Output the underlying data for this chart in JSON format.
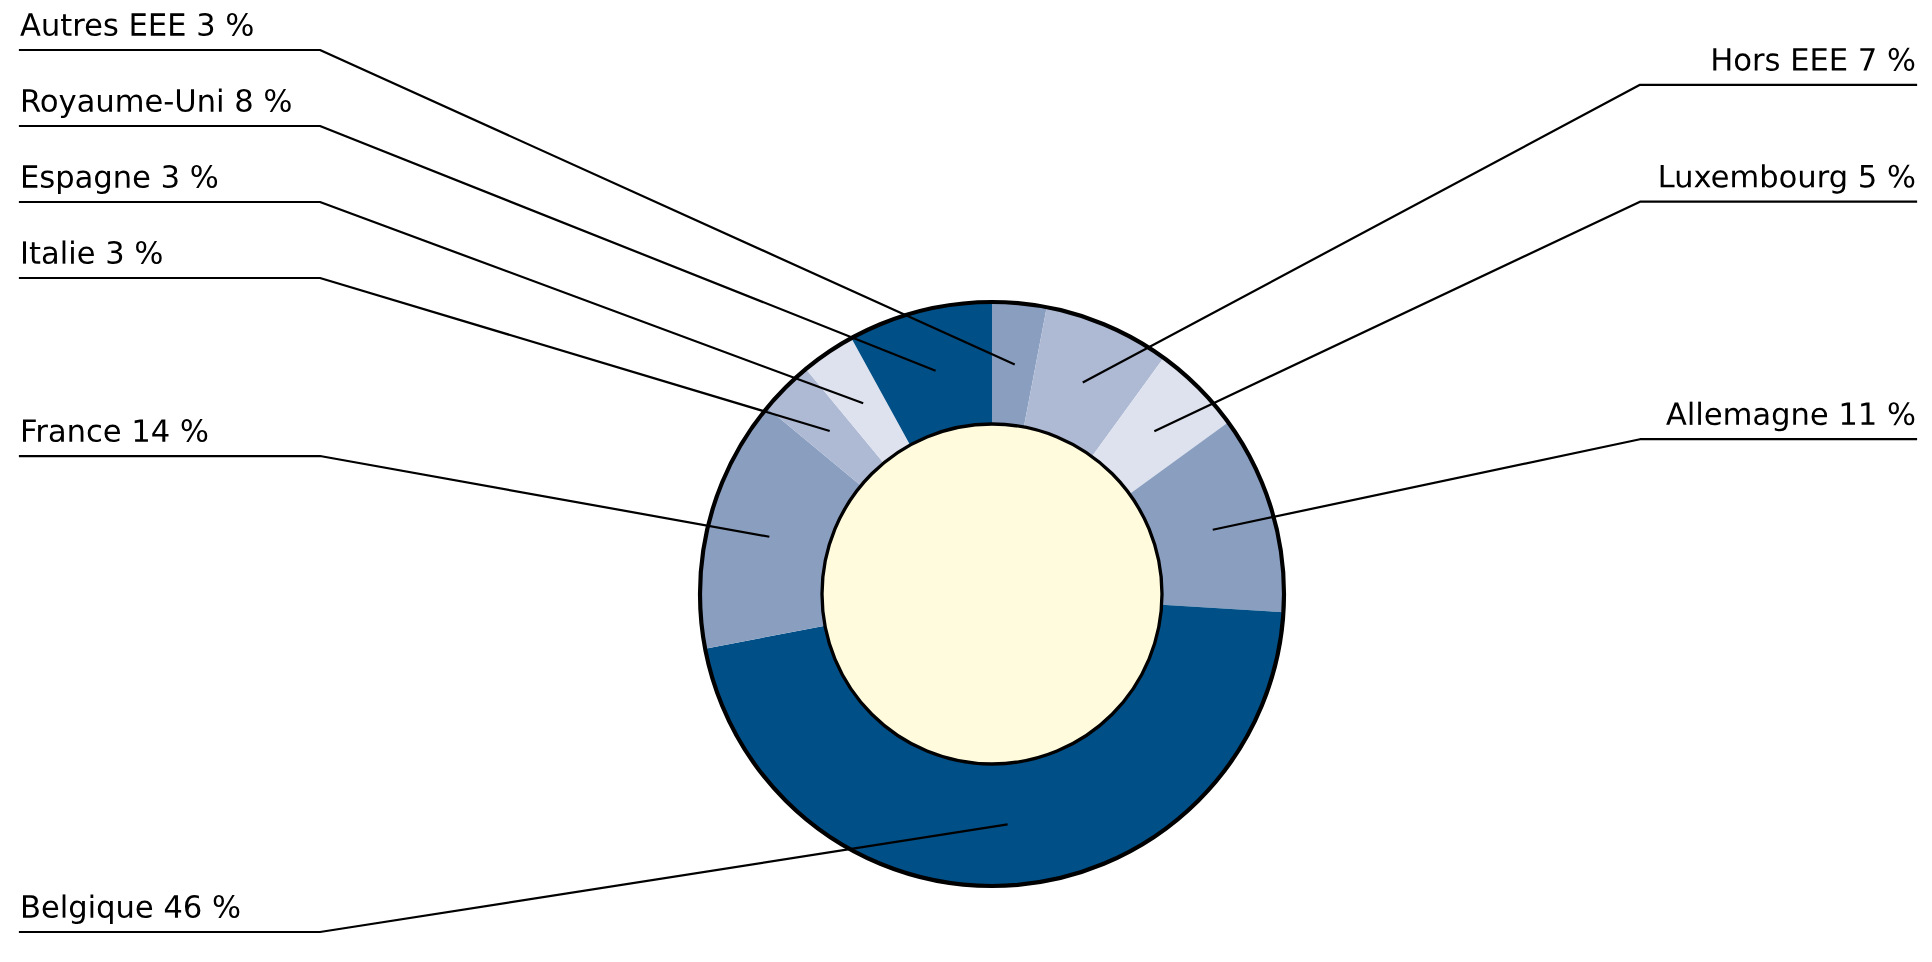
{
  "chart_data": {
    "type": "donut",
    "categories": [
      "Autres EEE",
      "Hors EEE",
      "Luxembourg",
      "Allemagne",
      "Belgique",
      "France",
      "Italie",
      "Espagne",
      "Royaume-Uni"
    ],
    "values": [
      3,
      7,
      5,
      11,
      46,
      14,
      3,
      3,
      8
    ],
    "value_labels": [
      "3 %",
      "7 %",
      "5 %",
      "11 %",
      "46 %",
      "14 %",
      "3 %",
      "3 %",
      "8 %"
    ],
    "colors": [
      "#8a9fc0",
      "#aeb9d4",
      "#dde2ee",
      "#8a9fc0",
      "#004f86",
      "#8a9fc0",
      "#aeb9d4",
      "#dde2ee",
      "#004f86"
    ]
  }
}
